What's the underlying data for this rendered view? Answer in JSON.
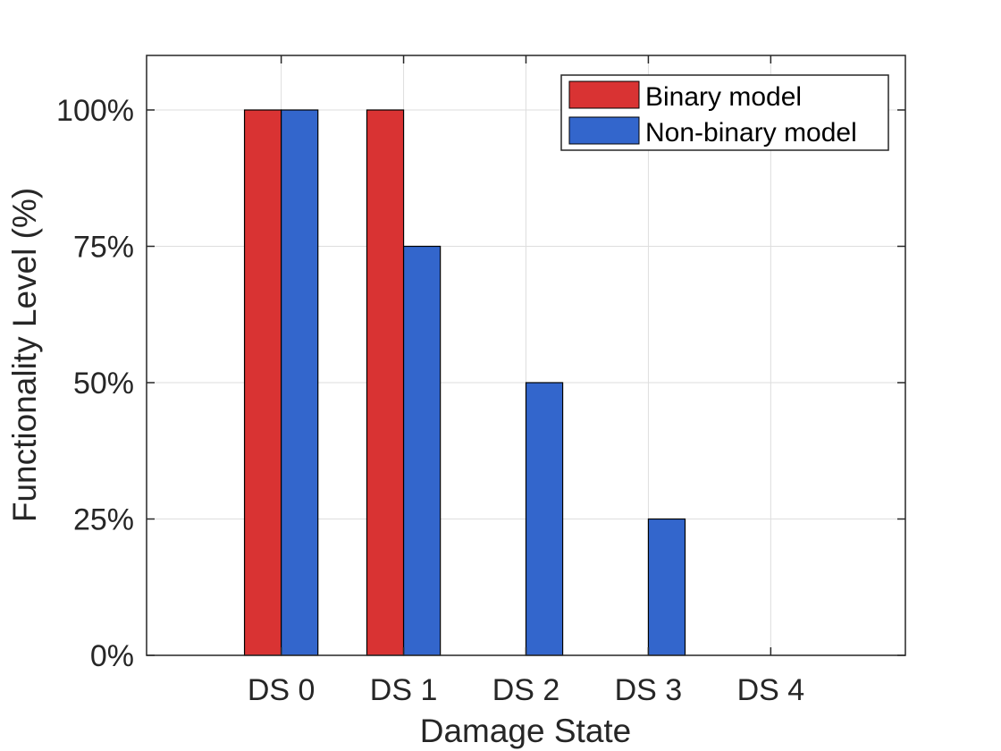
{
  "chart_data": {
    "type": "bar",
    "title": "",
    "xlabel": "Damage State",
    "ylabel": "Functionality Level (%)",
    "categories": [
      "DS 0",
      "DS 1",
      "DS 2",
      "DS 3",
      "DS 4"
    ],
    "series": [
      {
        "name": "Binary model",
        "values": [
          100,
          100,
          0,
          0,
          0
        ],
        "color": "#d93333"
      },
      {
        "name": "Non-binary model",
        "values": [
          100,
          75,
          50,
          25,
          0
        ],
        "color": "#3366cc"
      }
    ],
    "ylim": [
      0,
      110
    ],
    "yticks": [
      0,
      25,
      50,
      75,
      100
    ],
    "ytick_labels": [
      "0%",
      "25%",
      "50%",
      "75%",
      "100%"
    ],
    "xlim": [
      -0.1,
      6.1
    ],
    "grid": true,
    "legend_position": "top-right"
  }
}
